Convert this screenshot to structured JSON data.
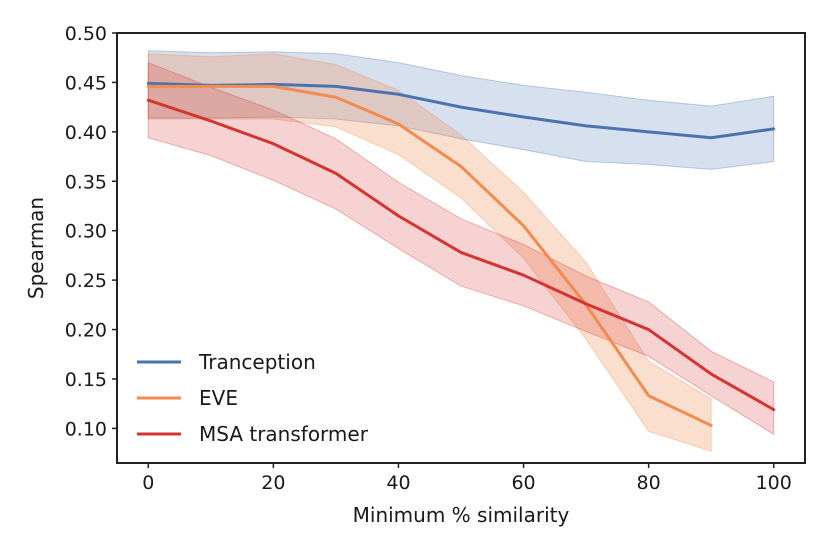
{
  "chart_data": {
    "type": "line",
    "title": "",
    "xlabel": "Minimum % similarity",
    "ylabel": "Spearman",
    "xlim": [
      -5,
      105
    ],
    "ylim": [
      0.065,
      0.5
    ],
    "xticks": [
      0,
      20,
      40,
      60,
      80,
      100
    ],
    "xtick_labels": [
      "0",
      "20",
      "40",
      "60",
      "80",
      "100"
    ],
    "yticks": [
      0.1,
      0.15,
      0.2,
      0.25,
      0.3,
      0.35,
      0.4,
      0.45,
      0.5
    ],
    "ytick_labels": [
      "0.10",
      "0.15",
      "0.20",
      "0.25",
      "0.30",
      "0.35",
      "0.40",
      "0.45",
      "0.50"
    ],
    "grid": false,
    "legend_position": "bottom-left",
    "series": [
      {
        "name": "Tranception",
        "color": "#4a72b0",
        "x": [
          0,
          10,
          20,
          30,
          40,
          50,
          60,
          70,
          80,
          90,
          100
        ],
        "values": [
          0.449,
          0.447,
          0.448,
          0.446,
          0.438,
          0.425,
          0.415,
          0.406,
          0.4,
          0.394,
          0.403
        ],
        "lower": [
          0.414,
          0.414,
          0.415,
          0.413,
          0.406,
          0.393,
          0.382,
          0.37,
          0.367,
          0.362,
          0.37
        ],
        "upper": [
          0.482,
          0.48,
          0.481,
          0.479,
          0.47,
          0.457,
          0.447,
          0.44,
          0.432,
          0.426,
          0.436
        ]
      },
      {
        "name": "EVE",
        "color": "#f28b50",
        "x": [
          0,
          10,
          20,
          30,
          40,
          50,
          60,
          70,
          80,
          90
        ],
        "values": [
          0.446,
          0.446,
          0.446,
          0.435,
          0.408,
          0.365,
          0.305,
          0.225,
          0.133,
          0.103
        ],
        "lower": [
          0.413,
          0.413,
          0.413,
          0.405,
          0.377,
          0.333,
          0.272,
          0.19,
          0.097,
          0.077
        ],
        "upper": [
          0.479,
          0.476,
          0.479,
          0.468,
          0.442,
          0.397,
          0.339,
          0.268,
          0.168,
          0.13
        ]
      },
      {
        "name": "MSA transformer",
        "color": "#d43530",
        "x": [
          0,
          10,
          20,
          30,
          40,
          50,
          60,
          70,
          80,
          90,
          100
        ],
        "values": [
          0.432,
          0.411,
          0.388,
          0.358,
          0.315,
          0.278,
          0.255,
          0.226,
          0.2,
          0.155,
          0.119
        ],
        "lower": [
          0.394,
          0.376,
          0.351,
          0.322,
          0.282,
          0.244,
          0.224,
          0.198,
          0.173,
          0.133,
          0.094
        ],
        "upper": [
          0.47,
          0.445,
          0.422,
          0.393,
          0.349,
          0.312,
          0.286,
          0.254,
          0.228,
          0.178,
          0.147
        ]
      }
    ]
  }
}
